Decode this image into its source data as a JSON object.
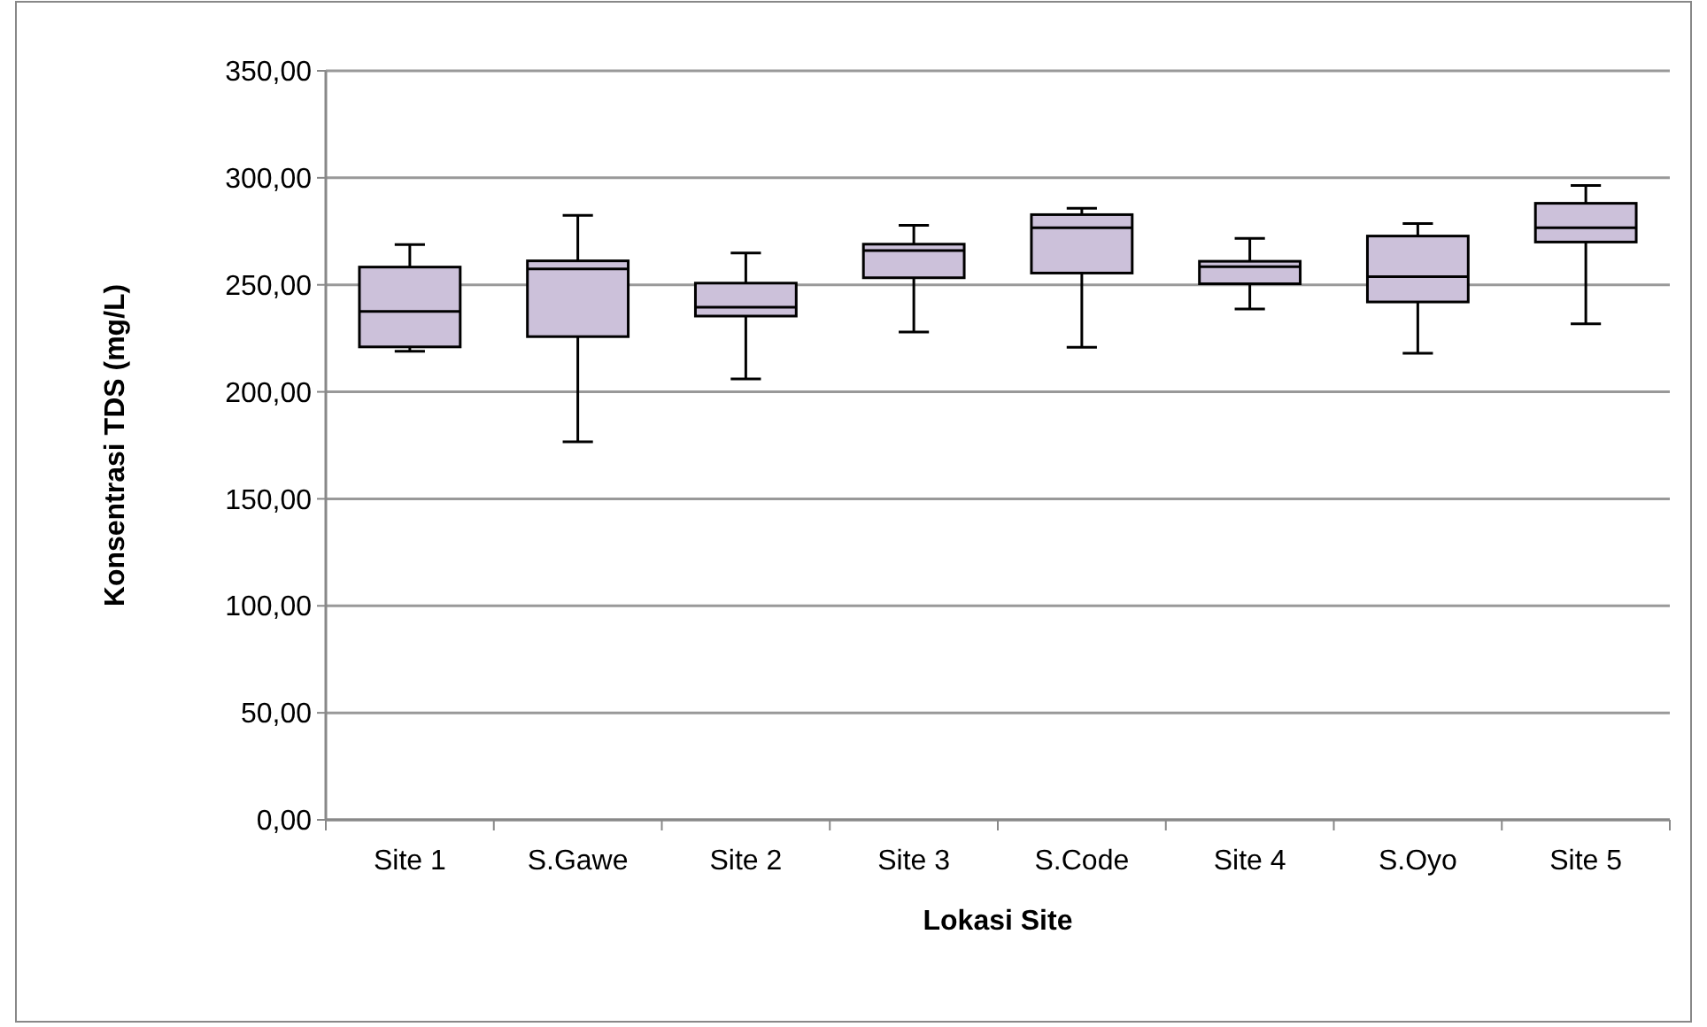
{
  "chart_data": {
    "type": "box",
    "xlabel": "Lokasi Site",
    "ylabel": "Konsentrasi TDS (mg/L)",
    "categories": [
      "Site 1",
      "S.Gawe",
      "Site 2",
      "Site 3",
      "S.Code",
      "Site 4",
      "S.Oyo",
      "Site 5"
    ],
    "color": "#ccc1da",
    "ylim": [
      0,
      350
    ],
    "yticks": [
      {
        "value": 0,
        "label": "0,00"
      },
      {
        "value": 50,
        "label": "50,00"
      },
      {
        "value": 100,
        "label": "100,00"
      },
      {
        "value": 150,
        "label": "150,00"
      },
      {
        "value": 200,
        "label": "200,00"
      },
      {
        "value": 250,
        "label": "250,00"
      },
      {
        "value": 300,
        "label": "300,00"
      },
      {
        "value": 350,
        "label": "350,00"
      }
    ],
    "grid": "y",
    "boxes": [
      {
        "low": 219,
        "q1": 221,
        "median": 237.6,
        "q3": 258.3,
        "high": 268.8
      },
      {
        "low": 176.7,
        "q1": 225.8,
        "median": 257.4,
        "q3": 261.2,
        "high": 282.5
      },
      {
        "low": 206,
        "q1": 235.4,
        "median": 239.5,
        "q3": 250.8,
        "high": 264.9
      },
      {
        "low": 228,
        "q1": 253.3,
        "median": 266,
        "q3": 269,
        "high": 277.8
      },
      {
        "low": 220.8,
        "q1": 255.5,
        "median": 276.7,
        "q3": 282.8,
        "high": 285.8
      },
      {
        "low": 238.7,
        "q1": 250.5,
        "median": 258.5,
        "q3": 261,
        "high": 271.7
      },
      {
        "low": 218,
        "q1": 242,
        "median": 253.8,
        "q3": 272.8,
        "high": 278.6
      },
      {
        "low": 231.8,
        "q1": 270,
        "median": 276.7,
        "q3": 288.1,
        "high": 296.4
      }
    ]
  }
}
